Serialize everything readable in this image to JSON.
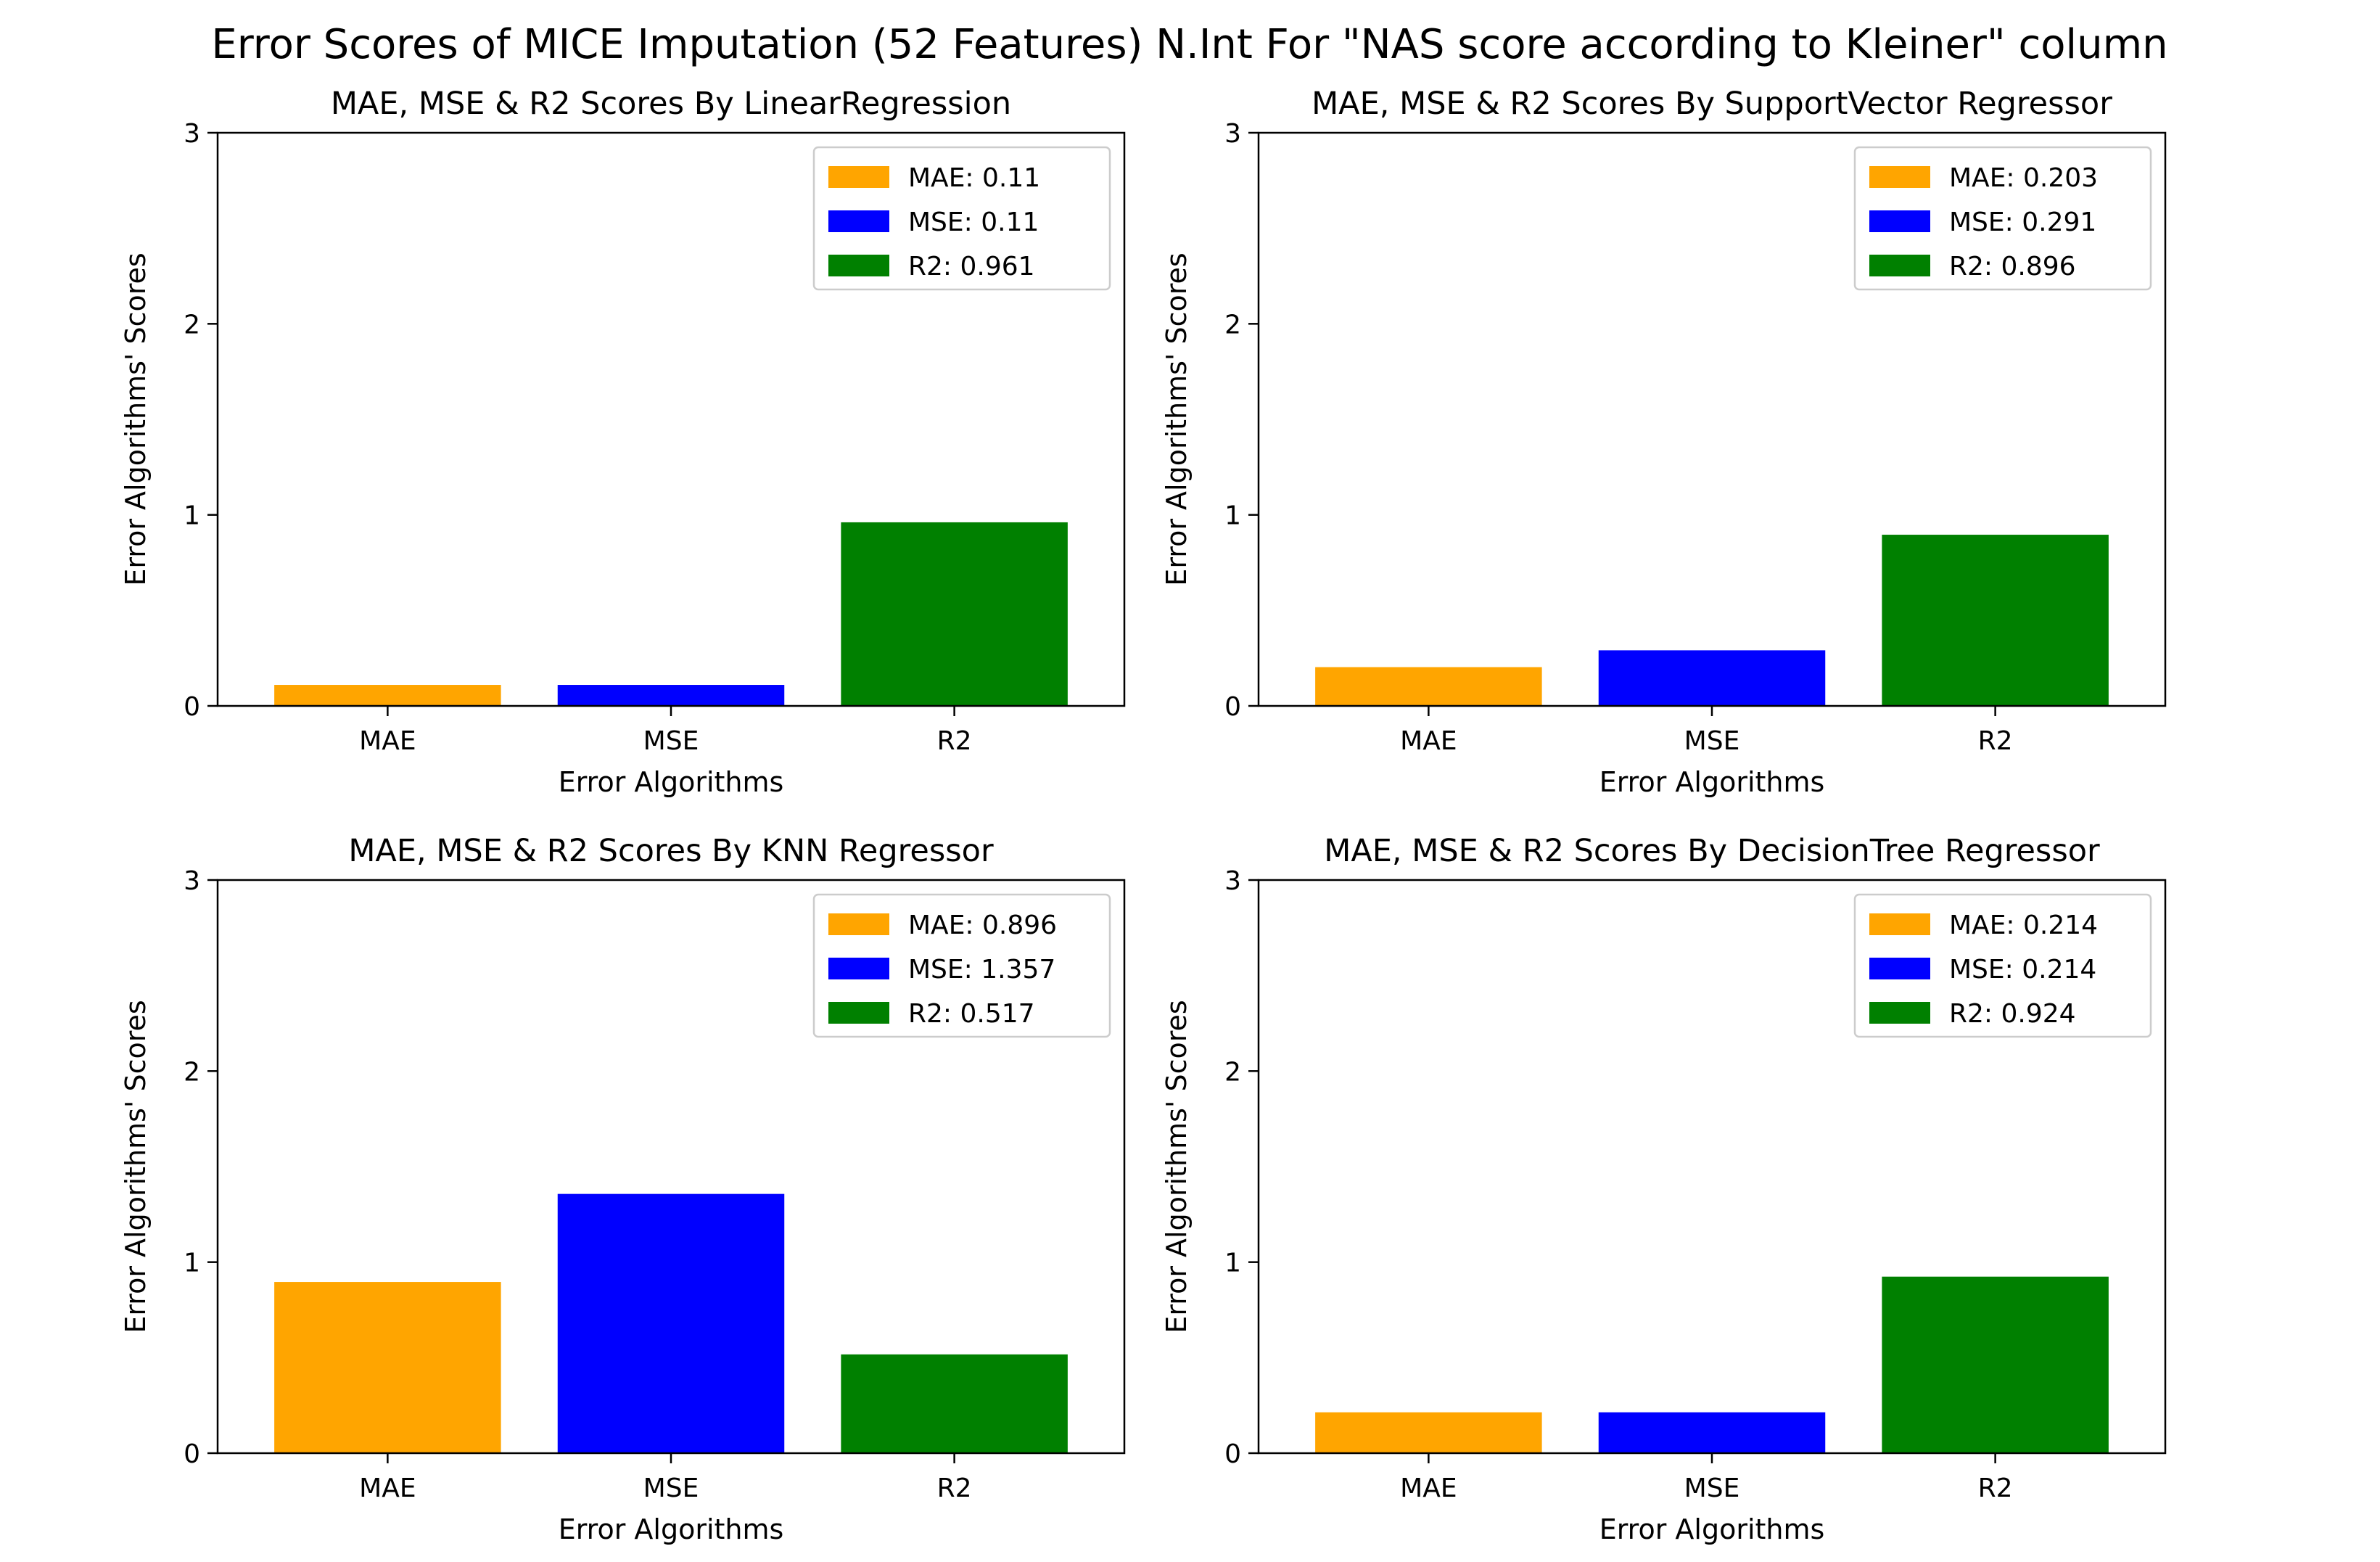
{
  "figure": {
    "title": "Error Scores of MICE Imputation (52 Features) N.Int For \"NAS score according to Kleiner\" column"
  },
  "colors": {
    "MAE": "#ffa500",
    "MSE": "#0000ff",
    "R2": "#008000"
  },
  "chart_data": [
    {
      "type": "bar",
      "title": "MAE, MSE & R2 Scores By LinearRegression",
      "xlabel": "Error Algorithms",
      "ylabel": "Error Algorithms' Scores",
      "categories": [
        "MAE",
        "MSE",
        "R2"
      ],
      "values": [
        0.11,
        0.11,
        0.961
      ],
      "ylim": [
        0,
        3
      ],
      "yticks": [
        "0",
        "1",
        "2",
        "3"
      ],
      "legend": [
        "MAE: 0.11",
        "MSE: 0.11",
        "R2: 0.961"
      ],
      "legend_position": "top-right",
      "grid": false
    },
    {
      "type": "bar",
      "title": "MAE, MSE & R2 Scores By SupportVector Regressor",
      "xlabel": "Error Algorithms",
      "ylabel": "Error Algorithms' Scores",
      "categories": [
        "MAE",
        "MSE",
        "R2"
      ],
      "values": [
        0.203,
        0.291,
        0.896
      ],
      "ylim": [
        0,
        3
      ],
      "yticks": [
        "0",
        "1",
        "2",
        "3"
      ],
      "legend": [
        "MAE: 0.203",
        "MSE: 0.291",
        "R2: 0.896"
      ],
      "legend_position": "top-right",
      "grid": false
    },
    {
      "type": "bar",
      "title": "MAE, MSE & R2 Scores By KNN Regressor",
      "xlabel": "Error Algorithms",
      "ylabel": "Error Algorithms' Scores",
      "categories": [
        "MAE",
        "MSE",
        "R2"
      ],
      "values": [
        0.896,
        1.357,
        0.517
      ],
      "ylim": [
        0,
        3
      ],
      "yticks": [
        "0",
        "1",
        "2",
        "3"
      ],
      "legend": [
        "MAE: 0.896",
        "MSE: 1.357",
        "R2: 0.517"
      ],
      "legend_position": "top-right",
      "grid": false
    },
    {
      "type": "bar",
      "title": "MAE, MSE & R2 Scores By DecisionTree Regressor",
      "xlabel": "Error Algorithms",
      "ylabel": "Error Algorithms' Scores",
      "categories": [
        "MAE",
        "MSE",
        "R2"
      ],
      "values": [
        0.214,
        0.214,
        0.924
      ],
      "ylim": [
        0,
        3
      ],
      "yticks": [
        "0",
        "1",
        "2",
        "3"
      ],
      "legend": [
        "MAE: 0.214",
        "MSE: 0.214",
        "R2: 0.924"
      ],
      "legend_position": "top-right",
      "grid": false
    }
  ]
}
